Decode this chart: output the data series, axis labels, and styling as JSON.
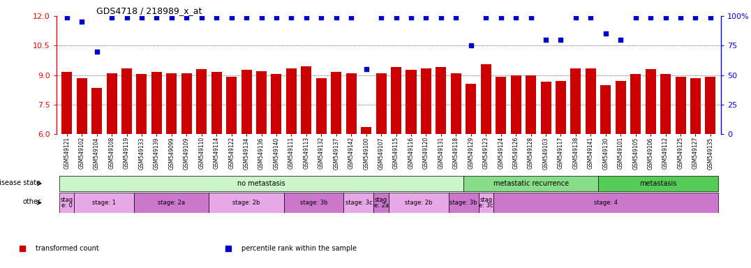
{
  "title": "GDS4718 / 218989_x_at",
  "samples": [
    "GSM549121",
    "GSM549102",
    "GSM549104",
    "GSM549108",
    "GSM549119",
    "GSM549133",
    "GSM549139",
    "GSM549099",
    "GSM549109",
    "GSM549110",
    "GSM549114",
    "GSM549122",
    "GSM549134",
    "GSM549136",
    "GSM549140",
    "GSM549111",
    "GSM549113",
    "GSM549132",
    "GSM549137",
    "GSM549142",
    "GSM549100",
    "GSM549107",
    "GSM549115",
    "GSM549116",
    "GSM549120",
    "GSM549131",
    "GSM549118",
    "GSM549129",
    "GSM549123",
    "GSM549124",
    "GSM549126",
    "GSM549128",
    "GSM549103",
    "GSM549117",
    "GSM549138",
    "GSM549141",
    "GSM549130",
    "GSM549101",
    "GSM549105",
    "GSM549106",
    "GSM549112",
    "GSM549125",
    "GSM549127",
    "GSM549135"
  ],
  "bar_values": [
    9.15,
    8.85,
    8.35,
    9.1,
    9.35,
    9.05,
    9.15,
    9.1,
    9.1,
    9.3,
    9.15,
    8.9,
    9.25,
    9.2,
    9.05,
    9.35,
    9.45,
    8.85,
    9.15,
    9.1,
    6.35,
    9.1,
    9.4,
    9.25,
    9.35,
    9.4,
    9.1,
    8.55,
    9.55,
    8.9,
    9.0,
    9.0,
    8.65,
    8.7,
    9.35,
    9.35,
    8.5,
    8.7,
    9.05,
    9.3,
    9.05,
    8.9,
    8.85,
    8.9
  ],
  "percentile_values": [
    99,
    95,
    70,
    99,
    99,
    99,
    99,
    99,
    99,
    99,
    99,
    99,
    99,
    99,
    99,
    99,
    99,
    99,
    99,
    99,
    55,
    99,
    99,
    99,
    99,
    99,
    99,
    75,
    99,
    99,
    99,
    99,
    80,
    80,
    99,
    99,
    85,
    80,
    99,
    99,
    99,
    99,
    99,
    99
  ],
  "bar_color": "#cc0000",
  "dot_color": "#0000cc",
  "ylim_left": [
    6,
    12
  ],
  "ylim_right": [
    0,
    100
  ],
  "yticks_left": [
    6,
    7.5,
    9,
    10.5,
    12
  ],
  "yticks_right": [
    0,
    25,
    50,
    75,
    100
  ],
  "disease_state_groups": [
    {
      "label": "no metastasis",
      "start": 0,
      "end": 27,
      "color": "#ccf5cc"
    },
    {
      "label": "metastatic recurrence",
      "start": 27,
      "end": 36,
      "color": "#88dd88"
    },
    {
      "label": "metastasis",
      "start": 36,
      "end": 44,
      "color": "#55cc55"
    }
  ],
  "stage_groups": [
    {
      "label": "stag\ne: 0",
      "start": 0,
      "end": 1,
      "color": "#e8a8e8"
    },
    {
      "label": "stage: 1",
      "start": 1,
      "end": 5,
      "color": "#e8a8e8"
    },
    {
      "label": "stage: 2a",
      "start": 5,
      "end": 10,
      "color": "#cc77cc"
    },
    {
      "label": "stage: 2b",
      "start": 10,
      "end": 15,
      "color": "#e8a8e8"
    },
    {
      "label": "stage: 3b",
      "start": 15,
      "end": 19,
      "color": "#cc77cc"
    },
    {
      "label": "stage: 3c",
      "start": 19,
      "end": 21,
      "color": "#e8a8e8"
    },
    {
      "label": "stag\ne: 2a",
      "start": 21,
      "end": 22,
      "color": "#cc77cc"
    },
    {
      "label": "stage: 2b",
      "start": 22,
      "end": 26,
      "color": "#e8a8e8"
    },
    {
      "label": "stage: 3b",
      "start": 26,
      "end": 28,
      "color": "#cc77cc"
    },
    {
      "label": "stag\ne: 3c",
      "start": 28,
      "end": 29,
      "color": "#e8a8e8"
    },
    {
      "label": "stage: 4",
      "start": 29,
      "end": 44,
      "color": "#cc77cc"
    }
  ],
  "legend_items": [
    {
      "label": "transformed count",
      "color": "#cc0000",
      "marker": "s"
    },
    {
      "label": "percentile rank within the sample",
      "color": "#0000cc",
      "marker": "s"
    }
  ],
  "background_color": "#ffffff"
}
